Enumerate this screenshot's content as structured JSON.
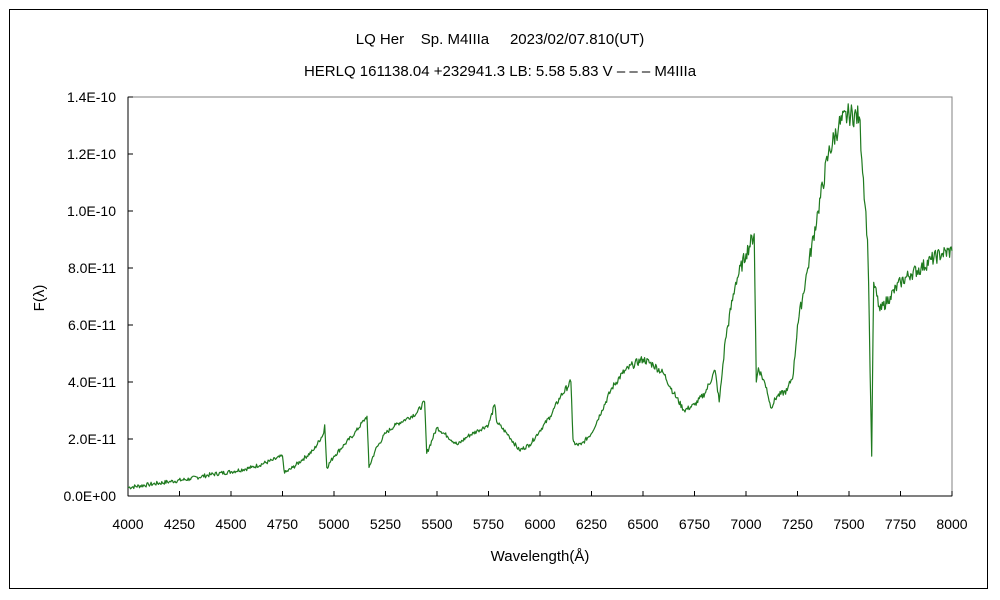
{
  "chart_data": {
    "type": "line",
    "title": "LQ Her    Sp. M4IIIa     2023/02/07.810(UT)",
    "subtitle": "HERLQ 161138.04 +232941.3 LB: 5.58 5.83 V – – – M4IIIa",
    "xlabel": "Wavelength(Å)",
    "ylabel": "F(λ)",
    "xlim": [
      4000,
      8000
    ],
    "ylim": [
      0,
      1.4e-10
    ],
    "x_ticks": [
      4000,
      4250,
      4500,
      4750,
      5000,
      5250,
      5500,
      5750,
      6000,
      6250,
      6500,
      6750,
      7000,
      7250,
      7500,
      7750,
      8000
    ],
    "x_tick_labels": [
      "4000",
      "4250",
      "4500",
      "4750",
      "5000",
      "5250",
      "5500",
      "5750",
      "6000",
      "6250",
      "6500",
      "6750",
      "7000",
      "7250",
      "7500",
      "7750",
      "8000"
    ],
    "y_ticks": [
      0,
      2e-11,
      4e-11,
      6e-11,
      8e-11,
      1e-10,
      1.2e-10,
      1.4e-10
    ],
    "y_tick_labels": [
      "0.0E+00",
      "2.0E-11",
      "4.0E-11",
      "6.0E-11",
      "8.0E-11",
      "1.0E-10",
      "1.2E-10",
      "1.4E-10"
    ],
    "grid": false,
    "legend": false,
    "line_color": "#1f7a1f",
    "series": [
      {
        "x": [
          4000,
          4100,
          4200,
          4300,
          4400,
          4500,
          4600,
          4700,
          4750,
          4760,
          4800,
          4850,
          4900,
          4950,
          4955,
          4965,
          5000,
          5050,
          5100,
          5150,
          5160,
          5170,
          5200,
          5250,
          5300,
          5350,
          5400,
          5440,
          5450,
          5500,
          5550,
          5600,
          5650,
          5700,
          5750,
          5780,
          5790,
          5850,
          5900,
          5950,
          6000,
          6050,
          6100,
          6150,
          6160,
          6170,
          6200,
          6250,
          6300,
          6350,
          6400,
          6450,
          6500,
          6550,
          6600,
          6650,
          6700,
          6750,
          6800,
          6850,
          6870,
          6880,
          6900,
          6950,
          7000,
          7040,
          7050,
          7060,
          7100,
          7120,
          7150,
          7200,
          7230,
          7250,
          7300,
          7350,
          7400,
          7450,
          7500,
          7550,
          7590,
          7595,
          7610,
          7620,
          7650,
          7700,
          7750,
          7800,
          7850,
          7900,
          7950,
          8000
        ],
        "y": [
          3e-12,
          4e-12,
          5e-12,
          6e-12,
          7.5e-12,
          8.5e-12,
          1e-11,
          1.25e-11,
          1.4e-11,
          8e-12,
          1e-11,
          1.3e-11,
          1.6e-11,
          2.2e-11,
          2.5e-11,
          1e-11,
          1.4e-11,
          1.8e-11,
          2.2e-11,
          2.7e-11,
          2.8e-11,
          1e-11,
          1.6e-11,
          2.2e-11,
          2.5e-11,
          2.7e-11,
          2.9e-11,
          3.3e-11,
          1.5e-11,
          2.4e-11,
          2.1e-11,
          1.8e-11,
          2.1e-11,
          2.3e-11,
          2.5e-11,
          3.2e-11,
          2.6e-11,
          2.1e-11,
          1.6e-11,
          1.8e-11,
          2.3e-11,
          2.8e-11,
          3.5e-11,
          4e-11,
          2e-11,
          1.8e-11,
          1.8e-11,
          2.2e-11,
          3e-11,
          3.8e-11,
          4.3e-11,
          4.6e-11,
          4.8e-11,
          4.6e-11,
          4.3e-11,
          3.6e-11,
          3e-11,
          3.2e-11,
          3.6e-11,
          4.4e-11,
          3.3e-11,
          4e-11,
          5.5e-11,
          7.5e-11,
          8.5e-11,
          9.2e-11,
          4e-11,
          4.5e-11,
          3.8e-11,
          3.1e-11,
          3.5e-11,
          3.7e-11,
          4.3e-11,
          6e-11,
          8e-11,
          1e-10,
          1.2e-10,
          1.3e-10,
          1.34e-10,
          1.33e-10,
          9e-11,
          7.5e-11,
          1.4e-11,
          7.5e-11,
          6.5e-11,
          7e-11,
          7.5e-11,
          7.8e-11,
          8e-11,
          8.3e-11,
          8.5e-11,
          8.6e-11
        ]
      }
    ]
  }
}
